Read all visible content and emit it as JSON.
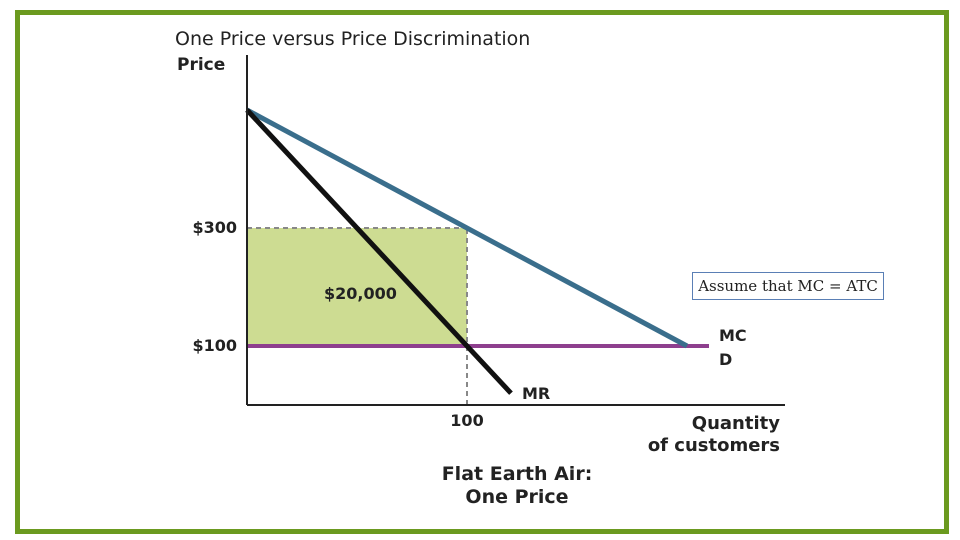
{
  "chart_data": {
    "type": "line",
    "title": "One Price versus Price Discrimination",
    "ylabel": "Price",
    "xlabel_lines": [
      "Quantity",
      "of customers"
    ],
    "caption_lines": [
      "Flat Earth Air:",
      "One Price"
    ],
    "y_tick_labels": [
      {
        "value": 300,
        "label": "$300"
      },
      {
        "value": 100,
        "label": "$100"
      }
    ],
    "x_tick_labels": [
      {
        "value": 100,
        "label": "100"
      }
    ],
    "xlim": [
      0,
      200
    ],
    "ylim": [
      0,
      500
    ],
    "series": [
      {
        "name": "D",
        "color": "#3a6e8c",
        "x": [
          0,
          200
        ],
        "y": [
          500,
          100
        ]
      },
      {
        "name": "MR",
        "color": "#111111",
        "x": [
          0,
          120
        ],
        "y": [
          500,
          20
        ]
      },
      {
        "name": "MC",
        "color": "#8e3f8e",
        "x": [
          0,
          210
        ],
        "y": [
          100,
          100
        ]
      }
    ],
    "shaded_region": {
      "x": [
        0,
        100
      ],
      "y": [
        100,
        300
      ],
      "label": "$20,000",
      "color": "#cddc92"
    },
    "guides": [
      {
        "from": [
          0,
          300
        ],
        "to": [
          100,
          300
        ]
      },
      {
        "from": [
          100,
          0
        ],
        "to": [
          100,
          300
        ]
      }
    ]
  },
  "note": "Assume that MC = ATC"
}
